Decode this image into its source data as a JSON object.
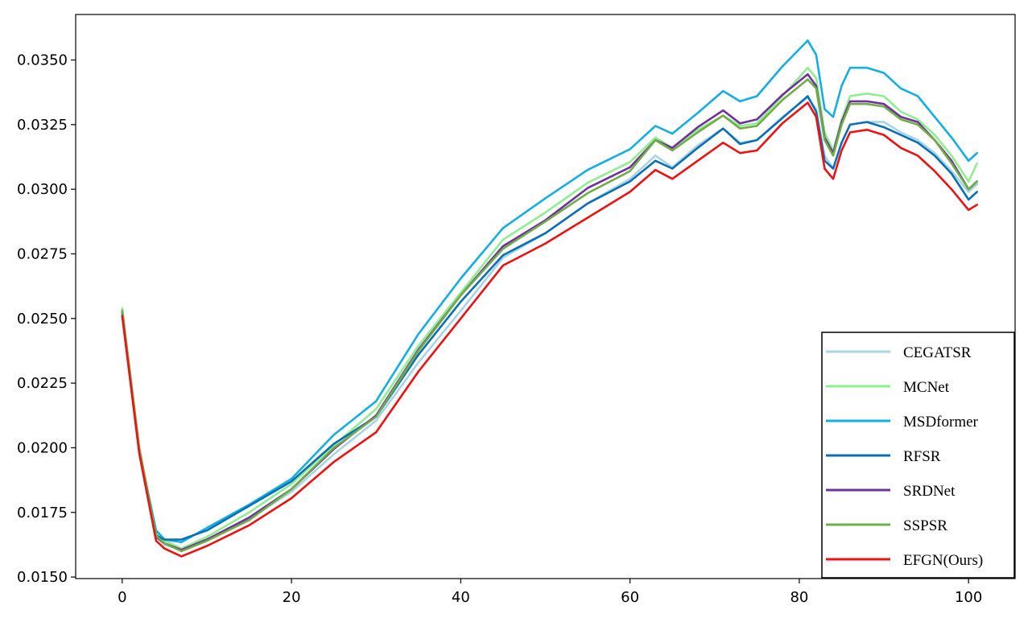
{
  "chart_data": {
    "type": "line",
    "title": "",
    "xlabel": "",
    "ylabel": "",
    "xlim": [
      -5.5,
      105.5
    ],
    "ylim": [
      0.01494,
      0.03676
    ],
    "xticks": [
      0,
      20,
      40,
      60,
      80,
      100
    ],
    "yticks": [
      0.015,
      0.0175,
      0.02,
      0.0225,
      0.025,
      0.0275,
      0.03,
      0.0325,
      0.035
    ],
    "ytick_labels": [
      "0.0150",
      "0.0175",
      "0.0200",
      "0.0225",
      "0.0250",
      "0.0275",
      "0.0300",
      "0.0325",
      "0.0350"
    ],
    "grid": false,
    "legend_position": "bottom-right",
    "x": [
      0,
      2,
      4,
      5,
      7,
      10,
      15,
      20,
      25,
      30,
      35,
      40,
      45,
      50,
      55,
      60,
      63,
      65,
      68,
      71,
      73,
      75,
      78,
      81,
      82,
      83,
      84,
      85,
      86,
      88,
      90,
      92,
      94,
      96,
      98,
      100,
      101
    ],
    "series": [
      {
        "name": "CEGATSR",
        "color": "#a8d4e6",
        "values": [
          0.02535,
          0.02,
          0.01655,
          0.01625,
          0.01605,
          0.0164,
          0.01725,
          0.0183,
          0.01975,
          0.02105,
          0.0233,
          0.0253,
          0.02735,
          0.0283,
          0.02945,
          0.0304,
          0.0313,
          0.03085,
          0.0317,
          0.03235,
          0.0318,
          0.0319,
          0.0328,
          0.03355,
          0.0331,
          0.0313,
          0.0308,
          0.0318,
          0.0325,
          0.0326,
          0.0326,
          0.0322,
          0.0319,
          0.0314,
          0.0307,
          0.0299,
          0.0302
        ]
      },
      {
        "name": "MCNet",
        "color": "#90ee90",
        "values": [
          0.0254,
          0.02,
          0.0167,
          0.0164,
          0.0161,
          0.01655,
          0.0175,
          0.0186,
          0.0201,
          0.0215,
          0.02395,
          0.026,
          0.02805,
          0.0291,
          0.03025,
          0.03105,
          0.032,
          0.0316,
          0.0323,
          0.03285,
          0.03245,
          0.03255,
          0.0336,
          0.0347,
          0.0343,
          0.0322,
          0.0315,
          0.0327,
          0.0336,
          0.0337,
          0.0336,
          0.033,
          0.0327,
          0.0321,
          0.0313,
          0.0303,
          0.031
        ]
      },
      {
        "name": "MSDformer",
        "color": "#13aee6",
        "values": [
          0.0253,
          0.0199,
          0.0168,
          0.01645,
          0.01635,
          0.0169,
          0.0178,
          0.0188,
          0.0205,
          0.0218,
          0.0244,
          0.02655,
          0.0285,
          0.02965,
          0.03075,
          0.03155,
          0.03245,
          0.03215,
          0.03295,
          0.0338,
          0.0334,
          0.0336,
          0.03475,
          0.03575,
          0.0352,
          0.0331,
          0.0328,
          0.034,
          0.0347,
          0.0347,
          0.0345,
          0.0339,
          0.0336,
          0.0328,
          0.032,
          0.0311,
          0.0314
        ]
      },
      {
        "name": "RFSR",
        "color": "#0a6fb7",
        "values": [
          0.0252,
          0.0199,
          0.0166,
          0.01645,
          0.01645,
          0.0168,
          0.01775,
          0.0187,
          0.02015,
          0.0212,
          0.0236,
          0.02565,
          0.02745,
          0.0283,
          0.02945,
          0.0303,
          0.0311,
          0.0308,
          0.0316,
          0.03235,
          0.03175,
          0.0319,
          0.03275,
          0.0336,
          0.033,
          0.0311,
          0.0308,
          0.0318,
          0.0325,
          0.0326,
          0.0324,
          0.0321,
          0.0318,
          0.0313,
          0.0306,
          0.0296,
          0.0299
        ]
      },
      {
        "name": "SRDNet",
        "color": "#7030a0",
        "values": [
          0.0253,
          0.02,
          0.01655,
          0.0163,
          0.01605,
          0.01645,
          0.0173,
          0.0184,
          0.01995,
          0.02125,
          0.0238,
          0.0259,
          0.0278,
          0.0288,
          0.03005,
          0.03085,
          0.0319,
          0.0316,
          0.0324,
          0.03305,
          0.03255,
          0.0327,
          0.03365,
          0.03445,
          0.034,
          0.032,
          0.0314,
          0.0326,
          0.0334,
          0.0334,
          0.0333,
          0.0328,
          0.0326,
          0.0319,
          0.0311,
          0.03,
          0.0303
        ]
      },
      {
        "name": "SSPSR",
        "color": "#70ad47",
        "values": [
          0.0253,
          0.02,
          0.0166,
          0.0163,
          0.016,
          0.0164,
          0.0172,
          0.0184,
          0.02,
          0.0212,
          0.02375,
          0.0259,
          0.0277,
          0.02875,
          0.02985,
          0.0307,
          0.0319,
          0.0315,
          0.0322,
          0.03285,
          0.03235,
          0.03245,
          0.03345,
          0.03425,
          0.0339,
          0.0319,
          0.0313,
          0.0325,
          0.0333,
          0.0333,
          0.0332,
          0.0327,
          0.0325,
          0.0319,
          0.031,
          0.03,
          0.0303
        ]
      },
      {
        "name": "EFGN(Ours)",
        "color": "#ee1111",
        "values": [
          0.0251,
          0.0198,
          0.0164,
          0.0161,
          0.0158,
          0.0162,
          0.017,
          0.01805,
          0.01945,
          0.0206,
          0.02295,
          0.025,
          0.02705,
          0.0279,
          0.0289,
          0.0299,
          0.03075,
          0.0304,
          0.0311,
          0.0318,
          0.0314,
          0.0315,
          0.03255,
          0.03335,
          0.0328,
          0.0308,
          0.0304,
          0.0315,
          0.0322,
          0.0323,
          0.0321,
          0.0316,
          0.0313,
          0.0307,
          0.03,
          0.0292,
          0.0294
        ]
      }
    ]
  }
}
